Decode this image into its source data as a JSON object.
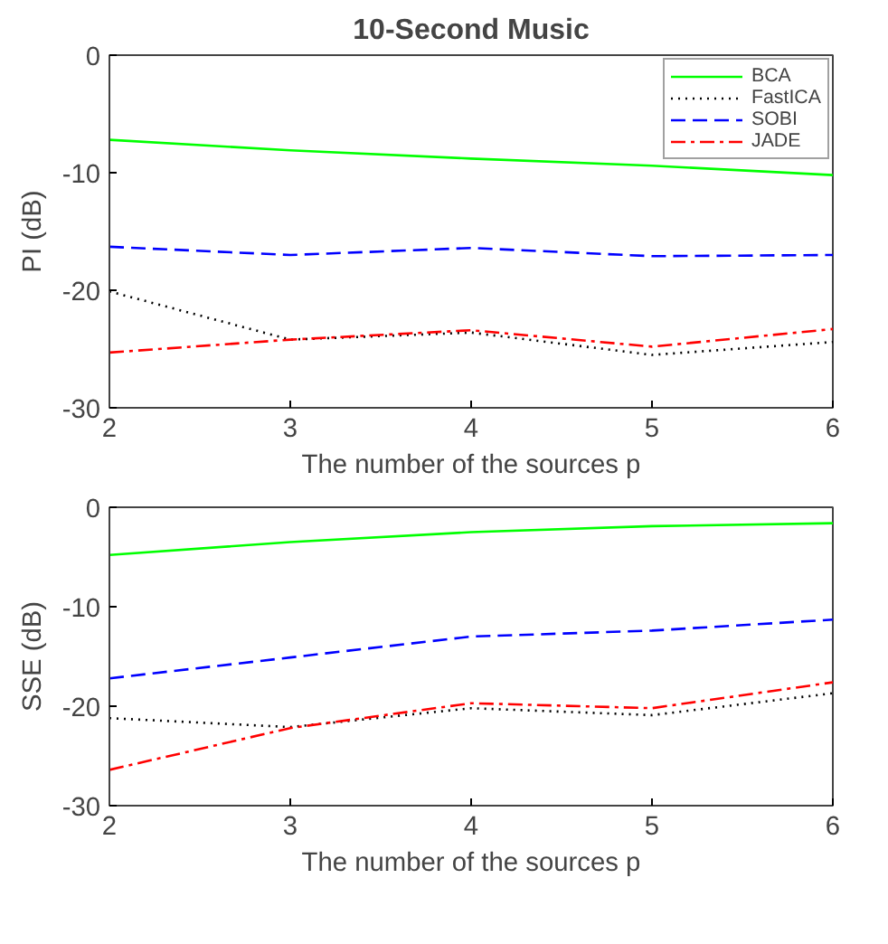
{
  "chart_data": [
    {
      "type": "line",
      "title": "10-Second Music",
      "xlabel": "The number of the sources p",
      "ylabel": "PI (dB)",
      "x": [
        2,
        3,
        4,
        5,
        6
      ],
      "xlim": [
        2,
        6
      ],
      "xticks": [
        2,
        3,
        4,
        5,
        6
      ],
      "ylim": [
        -30,
        0
      ],
      "yticks": [
        -30,
        -20,
        -10,
        0
      ],
      "grid": false,
      "legend": "top right",
      "series": [
        {
          "name": "BCA",
          "color": "#00ff00",
          "line_style": "solid",
          "values": [
            -7.2,
            -8.1,
            -8.8,
            -9.4,
            -10.2
          ]
        },
        {
          "name": "FastICA",
          "color": "#000000",
          "line_style": "dotted",
          "values": [
            -20.1,
            -24.2,
            -23.6,
            -25.5,
            -24.4
          ]
        },
        {
          "name": "SOBI",
          "color": "#0000ff",
          "line_style": "dashed",
          "values": [
            -16.3,
            -17.0,
            -16.4,
            -17.1,
            -17.0
          ]
        },
        {
          "name": "JADE",
          "color": "#ff0000",
          "line_style": "dashdot",
          "values": [
            -25.3,
            -24.2,
            -23.4,
            -24.8,
            -23.3
          ]
        }
      ]
    },
    {
      "type": "line",
      "xlabel": "The number of the sources p",
      "ylabel": "SSE (dB)",
      "x": [
        2,
        3,
        4,
        5,
        6
      ],
      "xlim": [
        2,
        6
      ],
      "xticks": [
        2,
        3,
        4,
        5,
        6
      ],
      "ylim": [
        -30,
        0
      ],
      "yticks": [
        -30,
        -20,
        -10,
        0
      ],
      "grid": false,
      "series": [
        {
          "color": "#00ff00",
          "line_style": "solid",
          "values": [
            -4.8,
            -3.5,
            -2.5,
            -1.9,
            -1.6
          ]
        },
        {
          "color": "#000000",
          "line_style": "dotted",
          "values": [
            -21.2,
            -22.1,
            -20.2,
            -20.9,
            -18.7
          ]
        },
        {
          "color": "#0000ff",
          "line_style": "dashed",
          "values": [
            -17.2,
            -15.1,
            -13.0,
            -12.4,
            -11.3
          ]
        },
        {
          "color": "#ff0000",
          "line_style": "dashdot",
          "values": [
            -26.4,
            -22.2,
            -19.7,
            -20.2,
            -17.6
          ]
        }
      ]
    }
  ]
}
